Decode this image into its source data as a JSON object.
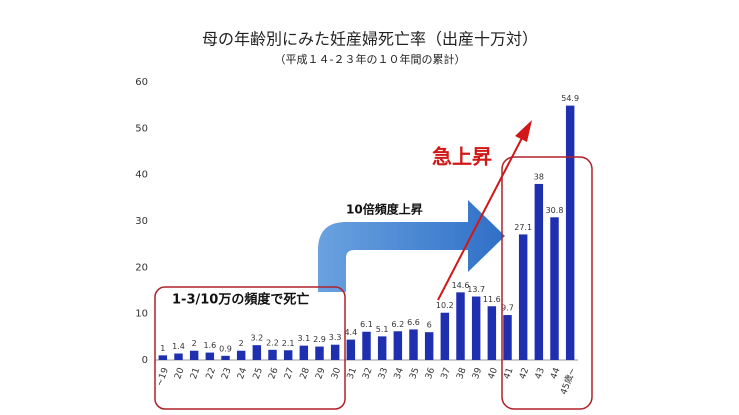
{
  "chart_data": {
    "type": "bar",
    "title": "母の年齢別にみた妊産婦死亡率（出産十万対）",
    "subtitle": "（平成１４-２３年の１０年間の累計）",
    "categories": [
      "~19",
      "20",
      "21",
      "22",
      "23",
      "24",
      "25",
      "26",
      "27",
      "28",
      "29",
      "30",
      "31",
      "32",
      "33",
      "34",
      "35",
      "36",
      "37",
      "38",
      "39",
      "40",
      "41",
      "42",
      "43",
      "44",
      "45歳~"
    ],
    "values": [
      1,
      1.4,
      2,
      1.6,
      0.9,
      2,
      3.2,
      2.2,
      2.1,
      3.1,
      2.9,
      3.3,
      4.4,
      6.1,
      5.1,
      6.2,
      6.6,
      6,
      10.2,
      14.6,
      13.7,
      11.6,
      9.7,
      27.1,
      38,
      30.8,
      54.9
    ],
    "color": "#1e2fb0",
    "ylim": [
      0,
      60
    ],
    "yticks": [
      0,
      10,
      20,
      30,
      40,
      50,
      60
    ],
    "grid": false,
    "annotations": [
      "1-3/10万の頻度で死亡",
      "10倍頻度上昇",
      "急上昇"
    ]
  }
}
